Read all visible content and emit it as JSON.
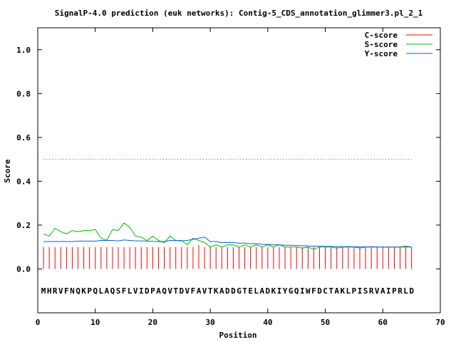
{
  "chart_data": {
    "type": "line",
    "title": "SignalP-4.0 prediction (euk networks): Contig-5_CDS_annotation_glimmer3.pl_2_1",
    "xlabel": "Position",
    "ylabel": "Score",
    "xlim": [
      0,
      70
    ],
    "ylim": [
      -0.2,
      1.1
    ],
    "xticks": [
      0,
      10,
      20,
      30,
      40,
      50,
      60,
      70
    ],
    "xtick_labels": [
      "0",
      "10",
      "20",
      "30",
      "40",
      "50",
      "60",
      "70"
    ],
    "yticks": [
      0.0,
      0.2,
      0.4,
      0.6,
      0.8,
      1.0
    ],
    "ytick_labels": [
      "0.0",
      "0.2",
      "0.4",
      "0.6",
      "0.8",
      "1.0"
    ],
    "legend_position": "top-right",
    "sequence": "MHRVFNQKPQLAQSFLVIDPAQVTDVFAVTKADDGTELADKIYGQIWFDCTAKLPISRVAIPRLD",
    "threshold": {
      "y": 0.5,
      "color": "#ff00ff"
    },
    "series": [
      {
        "name": "C-score",
        "kind": "impulse",
        "color": "#ff0000",
        "x": [
          1,
          2,
          3,
          4,
          5,
          6,
          7,
          8,
          9,
          10,
          11,
          12,
          13,
          14,
          15,
          16,
          17,
          18,
          19,
          20,
          21,
          22,
          23,
          24,
          25,
          26,
          27,
          28,
          29,
          30,
          31,
          32,
          33,
          34,
          35,
          36,
          37,
          38,
          39,
          40,
          41,
          42,
          43,
          44,
          45,
          46,
          47,
          48,
          49,
          50,
          51,
          52,
          53,
          54,
          55,
          56,
          57,
          58,
          59,
          60,
          61,
          62,
          63,
          64,
          65
        ],
        "values": [
          0.1,
          0.1,
          0.1,
          0.1,
          0.1,
          0.1,
          0.1,
          0.1,
          0.1,
          0.1,
          0.1,
          0.1,
          0.1,
          0.1,
          0.1,
          0.1,
          0.1,
          0.1,
          0.1,
          0.1,
          0.1,
          0.1,
          0.1,
          0.1,
          0.1,
          0.1,
          0.1,
          0.11,
          0.1,
          0.1,
          0.1,
          0.1,
          0.1,
          0.1,
          0.1,
          0.1,
          0.1,
          0.1,
          0.1,
          0.1,
          0.1,
          0.1,
          0.1,
          0.1,
          0.1,
          0.1,
          0.1,
          0.1,
          0.1,
          0.1,
          0.1,
          0.1,
          0.1,
          0.1,
          0.1,
          0.1,
          0.1,
          0.1,
          0.1,
          0.1,
          0.1,
          0.1,
          0.1,
          0.1,
          0.1
        ]
      },
      {
        "name": "S-score",
        "kind": "line",
        "color": "#00bb00",
        "x": [
          1,
          2,
          3,
          4,
          5,
          6,
          7,
          8,
          9,
          10,
          11,
          12,
          13,
          14,
          15,
          16,
          17,
          18,
          19,
          20,
          21,
          22,
          23,
          24,
          25,
          26,
          27,
          28,
          29,
          30,
          31,
          32,
          33,
          34,
          35,
          36,
          37,
          38,
          39,
          40,
          41,
          42,
          43,
          44,
          45,
          46,
          47,
          48,
          49,
          50,
          51,
          52,
          53,
          54,
          55,
          56,
          57,
          58,
          59,
          60,
          61,
          62,
          63,
          64,
          65
        ],
        "values": [
          0.16,
          0.15,
          0.185,
          0.17,
          0.16,
          0.175,
          0.17,
          0.175,
          0.175,
          0.18,
          0.14,
          0.13,
          0.18,
          0.175,
          0.21,
          0.19,
          0.15,
          0.145,
          0.13,
          0.15,
          0.13,
          0.12,
          0.15,
          0.13,
          0.13,
          0.11,
          0.14,
          0.13,
          0.12,
          0.1,
          0.11,
          0.1,
          0.11,
          0.11,
          0.1,
          0.11,
          0.1,
          0.11,
          0.1,
          0.11,
          0.1,
          0.11,
          0.1,
          0.1,
          0.1,
          0.095,
          0.1,
          0.09,
          0.1,
          0.1,
          0.1,
          0.095,
          0.1,
          0.1,
          0.1,
          0.095,
          0.1,
          0.1,
          0.1,
          0.1,
          0.1,
          0.1,
          0.1,
          0.105,
          0.1
        ]
      },
      {
        "name": "Y-score",
        "kind": "line",
        "color": "#0066cc",
        "x": [
          1,
          2,
          3,
          4,
          5,
          6,
          7,
          8,
          9,
          10,
          11,
          12,
          13,
          14,
          15,
          16,
          17,
          18,
          19,
          20,
          21,
          22,
          23,
          24,
          25,
          26,
          27,
          28,
          29,
          30,
          31,
          32,
          33,
          34,
          35,
          36,
          37,
          38,
          39,
          40,
          41,
          42,
          43,
          44,
          45,
          46,
          47,
          48,
          49,
          50,
          51,
          52,
          53,
          54,
          55,
          56,
          57,
          58,
          59,
          60,
          61,
          62,
          63,
          64,
          65
        ],
        "values": [
          0.125,
          0.125,
          0.125,
          0.125,
          0.125,
          0.125,
          0.127,
          0.127,
          0.127,
          0.127,
          0.13,
          0.13,
          0.13,
          0.128,
          0.132,
          0.13,
          0.128,
          0.128,
          0.127,
          0.126,
          0.125,
          0.125,
          0.13,
          0.13,
          0.128,
          0.13,
          0.135,
          0.14,
          0.145,
          0.125,
          0.125,
          0.12,
          0.12,
          0.12,
          0.118,
          0.118,
          0.115,
          0.115,
          0.112,
          0.112,
          0.11,
          0.11,
          0.108,
          0.108,
          0.106,
          0.106,
          0.105,
          0.104,
          0.104,
          0.103,
          0.103,
          0.102,
          0.102,
          0.102,
          0.101,
          0.101,
          0.101,
          0.101,
          0.101,
          0.1,
          0.1,
          0.1,
          0.1,
          0.1,
          0.1
        ]
      }
    ]
  }
}
